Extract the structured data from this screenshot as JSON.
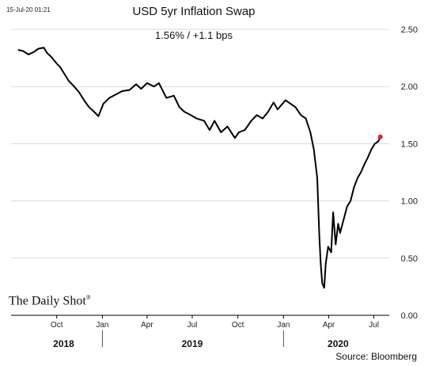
{
  "header": {
    "timestamp": "15-Jul-20 01:21",
    "title": "USD 5yr Inflation Swap",
    "subtitle": "1.56%  /  +1.1 bps"
  },
  "branding": {
    "name": "The Daily Shot",
    "mark": "®"
  },
  "footer": {
    "source": "Source: Bloomberg"
  },
  "colors": {
    "line": "#000000",
    "last_point": "#e8231e",
    "grid": "#d9d9d9",
    "axis": "#000000"
  },
  "chart_data": {
    "type": "line",
    "title": "USD 5yr Inflation Swap",
    "xlabel": "",
    "ylabel": "",
    "ylim": [
      0,
      2.5
    ],
    "yticks": [
      "0.00",
      "0.50",
      "1.00",
      "1.50",
      "2.00",
      "2.50"
    ],
    "xticks": [
      {
        "label": "Oct",
        "date": "2018-10-01"
      },
      {
        "label": "Jan",
        "date": "2019-01-01"
      },
      {
        "label": "Apr",
        "date": "2019-04-01"
      },
      {
        "label": "Jul",
        "date": "2019-07-01"
      },
      {
        "label": "Oct",
        "date": "2019-10-01"
      },
      {
        "label": "Jan",
        "date": "2020-01-01"
      },
      {
        "label": "Apr",
        "date": "2020-04-01"
      },
      {
        "label": "Jul",
        "date": "2020-07-01"
      }
    ],
    "years": [
      {
        "label": "2018",
        "date": "2018-10-15"
      },
      {
        "label": "2019",
        "date": "2019-07-01"
      },
      {
        "label": "2020",
        "date": "2020-04-20"
      }
    ],
    "grid": "horizontal",
    "series": [
      {
        "x": [
          "2018-07-15",
          "2018-07-25",
          "2018-08-05",
          "2018-08-15",
          "2018-08-25",
          "2018-09-05",
          "2018-09-12",
          "2018-09-20",
          "2018-10-01",
          "2018-10-08",
          "2018-10-15",
          "2018-10-25",
          "2018-11-05",
          "2018-11-15",
          "2018-11-25",
          "2018-12-05",
          "2018-12-15",
          "2018-12-24",
          "2019-01-03",
          "2019-01-15",
          "2019-01-28",
          "2019-02-10",
          "2019-02-25",
          "2019-03-10",
          "2019-03-20",
          "2019-04-01",
          "2019-04-15",
          "2019-04-25",
          "2019-05-10",
          "2019-05-25",
          "2019-06-05",
          "2019-06-15",
          "2019-06-28",
          "2019-07-10",
          "2019-07-25",
          "2019-08-05",
          "2019-08-15",
          "2019-08-28",
          "2019-09-10",
          "2019-09-25",
          "2019-10-03",
          "2019-10-15",
          "2019-10-28",
          "2019-11-08",
          "2019-11-20",
          "2019-12-01",
          "2019-12-12",
          "2019-12-20",
          "2020-01-05",
          "2020-01-15",
          "2020-01-25",
          "2020-02-05",
          "2020-02-15",
          "2020-02-24",
          "2020-03-02",
          "2020-03-09",
          "2020-03-13",
          "2020-03-16",
          "2020-03-19",
          "2020-03-23",
          "2020-03-26",
          "2020-03-31",
          "2020-04-06",
          "2020-04-10",
          "2020-04-15",
          "2020-04-20",
          "2020-04-24",
          "2020-04-30",
          "2020-05-08",
          "2020-05-15",
          "2020-05-22",
          "2020-05-29",
          "2020-06-05",
          "2020-06-12",
          "2020-06-19",
          "2020-06-26",
          "2020-07-03",
          "2020-07-10",
          "2020-07-14"
        ],
        "y": [
          2.32,
          2.31,
          2.28,
          2.3,
          2.33,
          2.34,
          2.29,
          2.26,
          2.2,
          2.17,
          2.12,
          2.05,
          2.0,
          1.95,
          1.88,
          1.82,
          1.78,
          1.74,
          1.85,
          1.9,
          1.93,
          1.96,
          1.97,
          2.02,
          1.98,
          2.03,
          2.0,
          2.03,
          1.9,
          1.92,
          1.82,
          1.78,
          1.75,
          1.72,
          1.7,
          1.62,
          1.7,
          1.6,
          1.65,
          1.55,
          1.6,
          1.62,
          1.7,
          1.75,
          1.72,
          1.78,
          1.86,
          1.8,
          1.88,
          1.85,
          1.82,
          1.75,
          1.72,
          1.6,
          1.45,
          1.2,
          0.7,
          0.45,
          0.28,
          0.24,
          0.45,
          0.6,
          0.55,
          0.9,
          0.62,
          0.8,
          0.72,
          0.82,
          0.95,
          1.0,
          1.12,
          1.2,
          1.25,
          1.32,
          1.38,
          1.45,
          1.5,
          1.52,
          1.56
        ]
      }
    ],
    "last_value": 1.56
  }
}
